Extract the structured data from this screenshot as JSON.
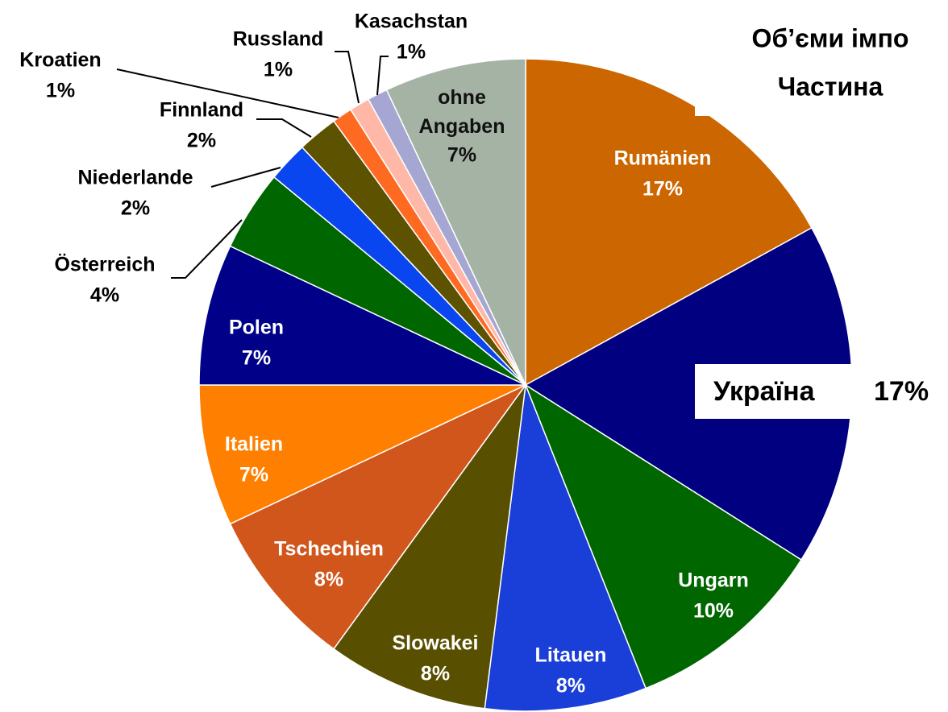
{
  "chart_data": {
    "type": "pie",
    "title": "Об’єми імпо",
    "subtitle": "Частина",
    "categories": [
      "Rumänien",
      "Україна",
      "Ungarn",
      "Litauen",
      "Slowakei",
      "Tschechien",
      "Italien",
      "Polen",
      "Österreich",
      "Niederlande",
      "Finnland",
      "Kroatien",
      "Russland",
      "Kasachstan",
      "ohne Angaben"
    ],
    "values": [
      17,
      17,
      10,
      8,
      8,
      8,
      7,
      7,
      4,
      2,
      2,
      1,
      1,
      1,
      7
    ],
    "value_labels": [
      "17%",
      "17%",
      "10%",
      "8%",
      "8%",
      "8%",
      "7%",
      "7%",
      "4%",
      "2%",
      "2%",
      "1%",
      "1%",
      "1%",
      "7%"
    ],
    "colors": [
      "#cc6600",
      "#000080",
      "#006600",
      "#1a3ed8",
      "#594f00",
      "#d0561c",
      "#ff8000",
      "#000088",
      "#006600",
      "#0a46f0",
      "#5c5200",
      "#ff6a22",
      "#ffb8a8",
      "#a6a6d2",
      "#a5b3a5"
    ]
  }
}
